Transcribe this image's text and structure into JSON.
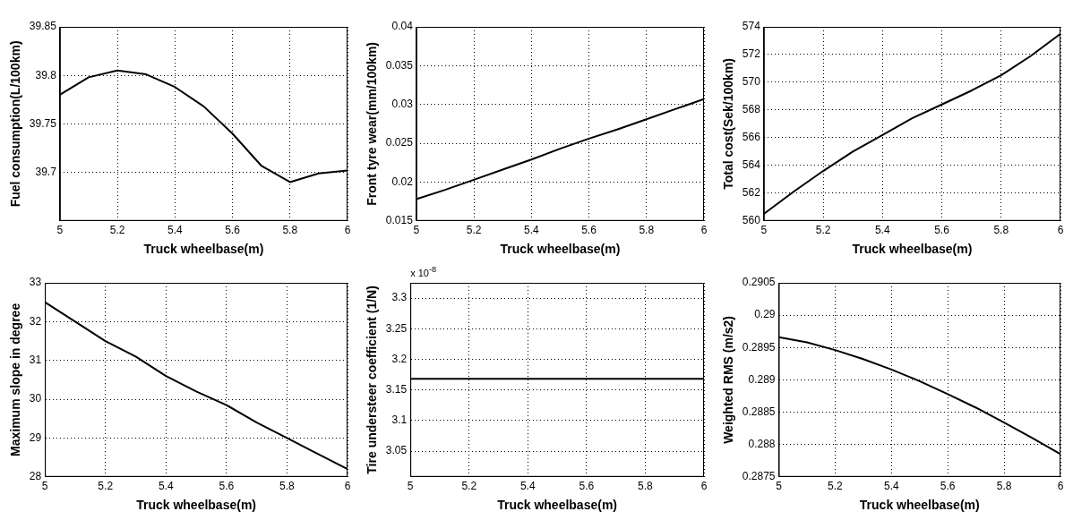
{
  "chart_data": [
    {
      "type": "line",
      "xlabel": "Truck wheelbase(m)",
      "ylabel": "Fuel consumption(L/100km)",
      "x": [
        5,
        5.1,
        5.2,
        5.3,
        5.4,
        5.5,
        5.6,
        5.7,
        5.8,
        5.9,
        6
      ],
      "series": [
        {
          "color": "#000000",
          "values": [
            39.78,
            39.798,
            39.805,
            39.801,
            39.788,
            39.768,
            39.74,
            39.707,
            39.69,
            39.699,
            39.702
          ]
        }
      ],
      "xlim": [
        5,
        6
      ],
      "xticks": [
        5,
        5.2,
        5.4,
        5.6,
        5.8,
        6
      ],
      "ylim": [
        39.65,
        39.85
      ],
      "yticks": [
        39.7,
        39.75,
        39.8,
        39.85
      ],
      "grid": true,
      "marker": "none",
      "line_style": "solid"
    },
    {
      "type": "line",
      "xlabel": "Truck wheelbase(m)",
      "ylabel": "Front tyre wear(mm/100km)",
      "x": [
        5,
        5.1,
        5.2,
        5.3,
        5.4,
        5.5,
        5.6,
        5.7,
        5.8,
        5.9,
        6
      ],
      "series": [
        {
          "color": "#000000",
          "values": [
            0.0178,
            0.019,
            0.0203,
            0.0216,
            0.0229,
            0.0243,
            0.0256,
            0.0268,
            0.0281,
            0.0294,
            0.0307
          ]
        }
      ],
      "xlim": [
        5,
        6
      ],
      "xticks": [
        5,
        5.2,
        5.4,
        5.6,
        5.8,
        6
      ],
      "ylim": [
        0.015,
        0.04
      ],
      "yticks": [
        0.015,
        0.02,
        0.025,
        0.03,
        0.035,
        0.04
      ],
      "grid": true,
      "marker": "none",
      "line_style": "solid"
    },
    {
      "type": "line",
      "xlabel": "Truck wheelbase(m)",
      "ylabel": "Total cost(Sek/100km)",
      "x": [
        5,
        5.1,
        5.2,
        5.3,
        5.4,
        5.5,
        5.6,
        5.7,
        5.8,
        5.9,
        6
      ],
      "series": [
        {
          "color": "#000000",
          "values": [
            560.5,
            562.1,
            563.6,
            565,
            566.2,
            567.4,
            568.4,
            569.4,
            570.5,
            571.9,
            573.5
          ]
        }
      ],
      "xlim": [
        5,
        6
      ],
      "xticks": [
        5,
        5.2,
        5.4,
        5.6,
        5.8,
        6
      ],
      "ylim": [
        560,
        574
      ],
      "yticks": [
        560,
        562,
        564,
        566,
        568,
        570,
        572,
        574
      ],
      "grid": true,
      "marker": "none",
      "line_style": "solid"
    },
    {
      "type": "line",
      "xlabel": "Truck wheelbase(m)",
      "ylabel": "Maximum slope in degree",
      "x": [
        5,
        5.1,
        5.2,
        5.3,
        5.4,
        5.5,
        5.6,
        5.7,
        5.8,
        5.9,
        6
      ],
      "series": [
        {
          "color": "#000000",
          "values": [
            32.5,
            32,
            31.5,
            31.1,
            30.6,
            30.2,
            29.85,
            29.4,
            29,
            28.6,
            28.2
          ]
        }
      ],
      "xlim": [
        5,
        6
      ],
      "xticks": [
        5,
        5.2,
        5.4,
        5.6,
        5.8,
        6
      ],
      "ylim": [
        28,
        33
      ],
      "yticks": [
        28,
        29,
        30,
        31,
        32,
        33
      ],
      "grid": true,
      "marker": "none",
      "line_style": "solid"
    },
    {
      "type": "line",
      "xlabel": "Truck wheelbase(m)",
      "ylabel": "Tire understeer coefficient (1/N)",
      "annotations": [
        "x 10$^{-8}$"
      ],
      "x": [
        5,
        5.1,
        5.2,
        5.3,
        5.4,
        5.5,
        5.6,
        5.7,
        5.8,
        5.9,
        6
      ],
      "series": [
        {
          "color": "#000000",
          "values": [
            3.168,
            3.168,
            3.168,
            3.168,
            3.168,
            3.168,
            3.168,
            3.168,
            3.168,
            3.168,
            3.168
          ]
        }
      ],
      "xlim": [
        5,
        6
      ],
      "xticks": [
        5,
        5.2,
        5.4,
        5.6,
        5.8,
        6
      ],
      "ylim": [
        3.008,
        3.325
      ],
      "yticks": [
        3.05,
        3.1,
        3.15,
        3.2,
        3.25,
        3.3
      ],
      "grid": true,
      "marker": "none",
      "line_style": "solid"
    },
    {
      "type": "line",
      "xlabel": "Truck wheelbase(m)",
      "ylabel": "Weighted RMS (m/s2)",
      "x": [
        5,
        5.1,
        5.2,
        5.3,
        5.4,
        5.5,
        5.6,
        5.7,
        5.8,
        5.9,
        6
      ],
      "series": [
        {
          "color": "#000000",
          "values": [
            0.28966,
            0.28958,
            0.28946,
            0.28932,
            0.28916,
            0.28898,
            0.28878,
            0.28857,
            0.28834,
            0.2881,
            0.28785
          ]
        }
      ],
      "xlim": [
        5,
        6
      ],
      "xticks": [
        5,
        5.2,
        5.4,
        5.6,
        5.8,
        6
      ],
      "ylim": [
        0.2875,
        0.2905
      ],
      "yticks": [
        0.2875,
        0.288,
        0.2885,
        0.289,
        0.2895,
        0.29,
        0.2905
      ],
      "grid": true,
      "marker": "none",
      "line_style": "solid"
    }
  ]
}
